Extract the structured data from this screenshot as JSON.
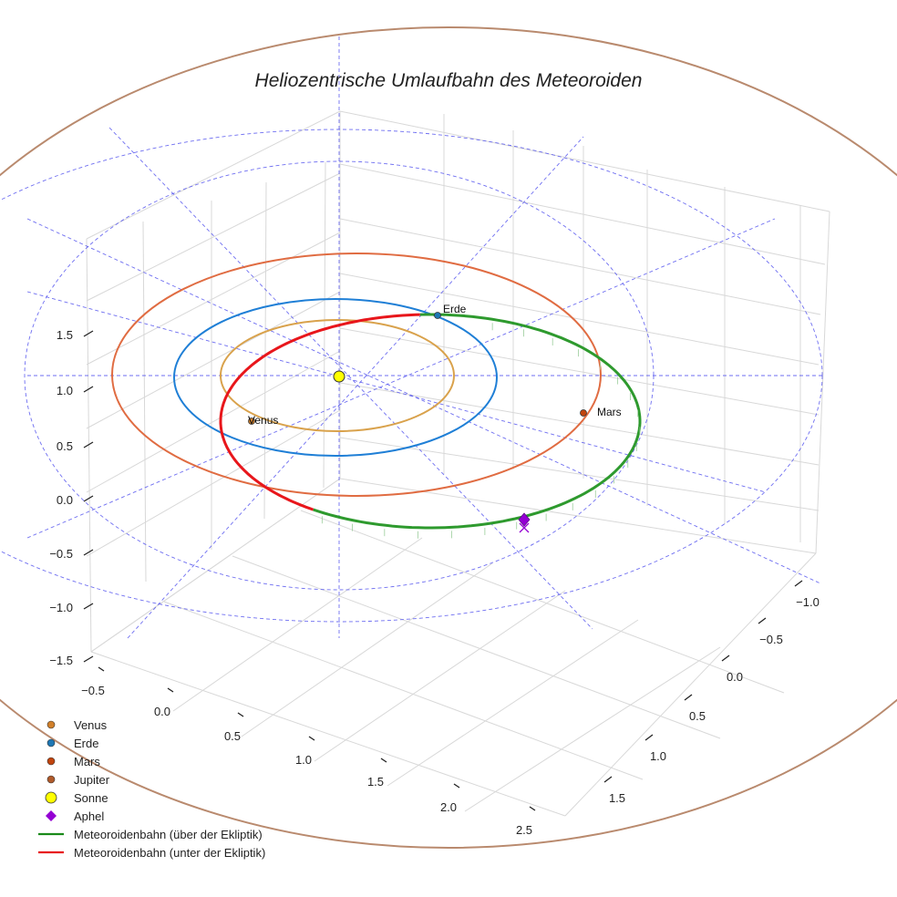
{
  "chart_data": {
    "type": "line3d",
    "title": "Heliozentrische Umlaufbahn des Meteoroiden",
    "xlabel": "",
    "ylabel": "",
    "zlabel": "",
    "x_ticks": [
      "−0.5",
      "0.0",
      "0.5",
      "1.0",
      "1.5",
      "2.0",
      "2.5"
    ],
    "y_ticks": [
      "−1.0",
      "−0.5",
      "0.0",
      "0.5",
      "1.0",
      "1.5"
    ],
    "z_ticks": [
      "−1.5",
      "−1.0",
      "−0.5",
      "0.0",
      "0.5",
      "1.0",
      "1.5"
    ],
    "grid": true,
    "bodies": [
      {
        "name": "Venus",
        "orbit_radius_au": 0.72,
        "label": "Venus"
      },
      {
        "name": "Erde",
        "orbit_radius_au": 1.0,
        "label": "Erde"
      },
      {
        "name": "Mars",
        "orbit_radius_au": 1.52,
        "label": "Mars"
      },
      {
        "name": "Jupiter",
        "orbit_radius_au": 5.2,
        "label": ""
      }
    ],
    "meteoroid_orbit": {
      "perihelion_au": 0.75,
      "aphelion_au": 1.95,
      "segments": [
        "above ecliptic",
        "below ecliptic"
      ]
    },
    "markers": [
      "Sonne",
      "Aphel"
    ],
    "legend": {
      "location": "lower-left",
      "entries": [
        {
          "label": "Venus",
          "marker": "circle",
          "color": "#d1802b"
        },
        {
          "label": "Erde",
          "marker": "circle",
          "color": "#1f77b4"
        },
        {
          "label": "Mars",
          "marker": "circle",
          "color": "#c1440e"
        },
        {
          "label": "Jupiter",
          "marker": "circle",
          "color": "#b05a2a"
        },
        {
          "label": "Sonne",
          "marker": "circle-large",
          "color": "#ffff00"
        },
        {
          "label": "Aphel",
          "marker": "diamond",
          "color": "#9400d3"
        },
        {
          "label": "Meteoroidenbahn (über der Ekliptik)",
          "marker": "line",
          "color": "#1a8a1a"
        },
        {
          "label": "Meteoroidenbahn (unter der Ekliptik)",
          "marker": "line",
          "color": "#e8161b"
        }
      ]
    }
  },
  "colors": {
    "venus_orbit": "#d9a24c",
    "earth_orbit": "#1f7fd6",
    "mars_orbit": "#e06c42",
    "jupiter_orbit": "#b98a6e",
    "ecliptic_grid": "#5555ee",
    "above": "#2e9a2e",
    "below": "#e8161b",
    "aphel": "#9400d3"
  }
}
